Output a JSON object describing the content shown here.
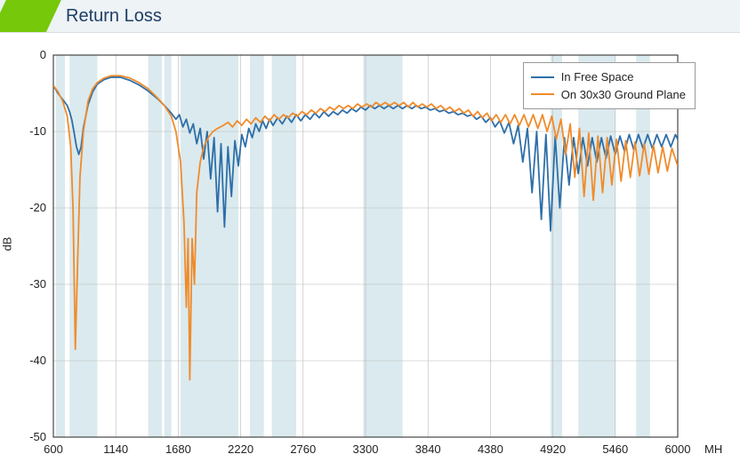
{
  "title": "Return Loss",
  "chart": {
    "type": "line",
    "background_color": "#ffffff",
    "grid_color": "#b7b7b7",
    "grid_width": 0.6,
    "band_fill": "#bed8e0",
    "band_opacity": 0.55,
    "line_width": 1.8,
    "ylabel": "dB",
    "x_unit": "MHz",
    "xlim": [
      600,
      6000
    ],
    "ylim": [
      -50,
      0
    ],
    "xticks": [
      600,
      1140,
      1680,
      2220,
      2760,
      3300,
      3840,
      4380,
      4920,
      5460,
      6000
    ],
    "yticks": [
      0,
      -10,
      -20,
      -30,
      -40,
      -50
    ],
    "tick_fontsize": 13,
    "label_fontsize": 13,
    "bands_x": [
      [
        620,
        700
      ],
      [
        740,
        980
      ],
      [
        1420,
        1540
      ],
      [
        1560,
        1620
      ],
      [
        1700,
        2200
      ],
      [
        2300,
        2420
      ],
      [
        2490,
        2700
      ],
      [
        3280,
        3620
      ],
      [
        4900,
        5000
      ],
      [
        5140,
        5460
      ],
      [
        5640,
        5760
      ]
    ],
    "series": [
      {
        "name": "In Free Space",
        "color": "#2e6fa8",
        "data": [
          [
            600,
            -4.0
          ],
          [
            640,
            -5.0
          ],
          [
            680,
            -5.8
          ],
          [
            720,
            -6.6
          ],
          [
            740,
            -7.4
          ],
          [
            760,
            -8.5
          ],
          [
            780,
            -10.2
          ],
          [
            800,
            -12.0
          ],
          [
            820,
            -13.0
          ],
          [
            840,
            -12.0
          ],
          [
            860,
            -9.5
          ],
          [
            900,
            -6.5
          ],
          [
            940,
            -4.8
          ],
          [
            980,
            -3.8
          ],
          [
            1040,
            -3.2
          ],
          [
            1100,
            -2.9
          ],
          [
            1180,
            -2.9
          ],
          [
            1260,
            -3.3
          ],
          [
            1340,
            -3.9
          ],
          [
            1420,
            -4.7
          ],
          [
            1500,
            -5.7
          ],
          [
            1560,
            -6.6
          ],
          [
            1620,
            -7.6
          ],
          [
            1660,
            -8.4
          ],
          [
            1690,
            -7.8
          ],
          [
            1720,
            -9.4
          ],
          [
            1750,
            -8.4
          ],
          [
            1780,
            -10.2
          ],
          [
            1810,
            -9.0
          ],
          [
            1840,
            -11.6
          ],
          [
            1870,
            -9.6
          ],
          [
            1900,
            -13.6
          ],
          [
            1930,
            -10.0
          ],
          [
            1960,
            -16.2
          ],
          [
            1990,
            -10.8
          ],
          [
            2020,
            -20.5
          ],
          [
            2050,
            -11.6
          ],
          [
            2080,
            -22.5
          ],
          [
            2110,
            -12.0
          ],
          [
            2140,
            -18.5
          ],
          [
            2170,
            -11.2
          ],
          [
            2200,
            -14.5
          ],
          [
            2230,
            -10.4
          ],
          [
            2260,
            -12.0
          ],
          [
            2290,
            -9.6
          ],
          [
            2320,
            -10.8
          ],
          [
            2350,
            -9.0
          ],
          [
            2380,
            -10.0
          ],
          [
            2410,
            -8.6
          ],
          [
            2440,
            -9.6
          ],
          [
            2470,
            -8.4
          ],
          [
            2500,
            -9.2
          ],
          [
            2540,
            -8.2
          ],
          [
            2580,
            -9.0
          ],
          [
            2620,
            -8.0
          ],
          [
            2660,
            -8.8
          ],
          [
            2700,
            -7.8
          ],
          [
            2740,
            -8.6
          ],
          [
            2780,
            -7.8
          ],
          [
            2820,
            -8.4
          ],
          [
            2860,
            -7.6
          ],
          [
            2900,
            -8.2
          ],
          [
            2940,
            -7.4
          ],
          [
            2980,
            -8.0
          ],
          [
            3020,
            -7.4
          ],
          [
            3060,
            -7.8
          ],
          [
            3100,
            -7.2
          ],
          [
            3140,
            -7.6
          ],
          [
            3180,
            -7.0
          ],
          [
            3220,
            -7.4
          ],
          [
            3260,
            -6.8
          ],
          [
            3300,
            -7.2
          ],
          [
            3340,
            -6.6
          ],
          [
            3380,
            -7.0
          ],
          [
            3420,
            -6.6
          ],
          [
            3460,
            -7.0
          ],
          [
            3500,
            -6.6
          ],
          [
            3540,
            -7.0
          ],
          [
            3580,
            -6.6
          ],
          [
            3620,
            -7.0
          ],
          [
            3660,
            -6.6
          ],
          [
            3700,
            -7.0
          ],
          [
            3740,
            -6.6
          ],
          [
            3780,
            -7.0
          ],
          [
            3820,
            -6.8
          ],
          [
            3860,
            -7.2
          ],
          [
            3900,
            -7.0
          ],
          [
            3940,
            -7.4
          ],
          [
            3980,
            -7.2
          ],
          [
            4020,
            -7.6
          ],
          [
            4060,
            -7.4
          ],
          [
            4100,
            -7.8
          ],
          [
            4140,
            -7.6
          ],
          [
            4180,
            -8.0
          ],
          [
            4220,
            -7.8
          ],
          [
            4260,
            -8.4
          ],
          [
            4300,
            -8.0
          ],
          [
            4340,
            -8.8
          ],
          [
            4380,
            -8.2
          ],
          [
            4420,
            -9.4
          ],
          [
            4460,
            -8.6
          ],
          [
            4500,
            -10.2
          ],
          [
            4540,
            -8.8
          ],
          [
            4580,
            -11.6
          ],
          [
            4620,
            -9.2
          ],
          [
            4660,
            -14.0
          ],
          [
            4700,
            -9.6
          ],
          [
            4740,
            -18.0
          ],
          [
            4780,
            -10.0
          ],
          [
            4820,
            -21.5
          ],
          [
            4860,
            -10.4
          ],
          [
            4900,
            -23.0
          ],
          [
            4940,
            -10.6
          ],
          [
            4980,
            -20.0
          ],
          [
            5020,
            -10.8
          ],
          [
            5060,
            -17.0
          ],
          [
            5100,
            -10.8
          ],
          [
            5140,
            -15.5
          ],
          [
            5180,
            -10.8
          ],
          [
            5220,
            -14.5
          ],
          [
            5260,
            -10.8
          ],
          [
            5300,
            -14.0
          ],
          [
            5340,
            -10.8
          ],
          [
            5380,
            -13.5
          ],
          [
            5420,
            -10.6
          ],
          [
            5460,
            -13.0
          ],
          [
            5500,
            -10.6
          ],
          [
            5540,
            -12.6
          ],
          [
            5580,
            -10.4
          ],
          [
            5620,
            -12.4
          ],
          [
            5660,
            -10.4
          ],
          [
            5700,
            -12.2
          ],
          [
            5740,
            -10.4
          ],
          [
            5780,
            -12.2
          ],
          [
            5820,
            -10.4
          ],
          [
            5860,
            -12.0
          ],
          [
            5900,
            -10.4
          ],
          [
            5940,
            -12.0
          ],
          [
            5980,
            -10.4
          ],
          [
            6000,
            -11.0
          ]
        ]
      },
      {
        "name": "On 30x30 Ground Plane",
        "color": "#f08b2b",
        "data": [
          [
            600,
            -4.0
          ],
          [
            640,
            -4.8
          ],
          [
            680,
            -6.0
          ],
          [
            720,
            -8.0
          ],
          [
            750,
            -12.0
          ],
          [
            770,
            -20.0
          ],
          [
            790,
            -38.5
          ],
          [
            810,
            -27.0
          ],
          [
            830,
            -16.0
          ],
          [
            860,
            -10.0
          ],
          [
            900,
            -6.0
          ],
          [
            940,
            -4.4
          ],
          [
            980,
            -3.6
          ],
          [
            1040,
            -3.0
          ],
          [
            1100,
            -2.7
          ],
          [
            1180,
            -2.7
          ],
          [
            1260,
            -3.0
          ],
          [
            1340,
            -3.6
          ],
          [
            1420,
            -4.4
          ],
          [
            1500,
            -5.6
          ],
          [
            1560,
            -6.6
          ],
          [
            1620,
            -8.0
          ],
          [
            1660,
            -10.0
          ],
          [
            1700,
            -14.0
          ],
          [
            1730,
            -22.0
          ],
          [
            1750,
            -33.0
          ],
          [
            1765,
            -24.0
          ],
          [
            1780,
            -42.5
          ],
          [
            1800,
            -24.0
          ],
          [
            1820,
            -30.0
          ],
          [
            1840,
            -18.0
          ],
          [
            1870,
            -14.0
          ],
          [
            1900,
            -12.0
          ],
          [
            1940,
            -10.8
          ],
          [
            1980,
            -10.0
          ],
          [
            2020,
            -9.6
          ],
          [
            2070,
            -9.2
          ],
          [
            2110,
            -8.8
          ],
          [
            2150,
            -9.4
          ],
          [
            2190,
            -8.6
          ],
          [
            2230,
            -9.2
          ],
          [
            2270,
            -8.4
          ],
          [
            2310,
            -9.0
          ],
          [
            2350,
            -8.2
          ],
          [
            2390,
            -8.8
          ],
          [
            2430,
            -8.0
          ],
          [
            2470,
            -8.6
          ],
          [
            2510,
            -7.8
          ],
          [
            2550,
            -8.4
          ],
          [
            2590,
            -7.8
          ],
          [
            2630,
            -8.2
          ],
          [
            2670,
            -7.6
          ],
          [
            2710,
            -8.0
          ],
          [
            2750,
            -7.4
          ],
          [
            2790,
            -7.8
          ],
          [
            2830,
            -7.2
          ],
          [
            2870,
            -7.6
          ],
          [
            2910,
            -7.0
          ],
          [
            2950,
            -7.4
          ],
          [
            2990,
            -6.8
          ],
          [
            3030,
            -7.2
          ],
          [
            3070,
            -6.6
          ],
          [
            3110,
            -7.0
          ],
          [
            3150,
            -6.6
          ],
          [
            3190,
            -7.0
          ],
          [
            3230,
            -6.4
          ],
          [
            3270,
            -6.8
          ],
          [
            3310,
            -6.4
          ],
          [
            3350,
            -6.8
          ],
          [
            3390,
            -6.2
          ],
          [
            3430,
            -6.6
          ],
          [
            3470,
            -6.2
          ],
          [
            3510,
            -6.6
          ],
          [
            3550,
            -6.2
          ],
          [
            3590,
            -6.6
          ],
          [
            3630,
            -6.2
          ],
          [
            3670,
            -6.8
          ],
          [
            3710,
            -6.2
          ],
          [
            3750,
            -6.8
          ],
          [
            3790,
            -6.4
          ],
          [
            3830,
            -6.8
          ],
          [
            3870,
            -6.4
          ],
          [
            3910,
            -7.0
          ],
          [
            3950,
            -6.6
          ],
          [
            3990,
            -7.2
          ],
          [
            4030,
            -6.8
          ],
          [
            4070,
            -7.4
          ],
          [
            4110,
            -7.0
          ],
          [
            4150,
            -7.6
          ],
          [
            4190,
            -7.2
          ],
          [
            4230,
            -8.0
          ],
          [
            4270,
            -7.4
          ],
          [
            4310,
            -8.2
          ],
          [
            4350,
            -7.6
          ],
          [
            4390,
            -8.6
          ],
          [
            4430,
            -7.8
          ],
          [
            4470,
            -8.8
          ],
          [
            4510,
            -7.8
          ],
          [
            4550,
            -9.0
          ],
          [
            4590,
            -7.8
          ],
          [
            4630,
            -9.2
          ],
          [
            4670,
            -7.8
          ],
          [
            4710,
            -9.4
          ],
          [
            4750,
            -7.8
          ],
          [
            4790,
            -9.6
          ],
          [
            4830,
            -7.8
          ],
          [
            4870,
            -10.0
          ],
          [
            4910,
            -8.0
          ],
          [
            4950,
            -11.0
          ],
          [
            4990,
            -8.4
          ],
          [
            5030,
            -13.0
          ],
          [
            5070,
            -9.0
          ],
          [
            5110,
            -16.0
          ],
          [
            5150,
            -9.6
          ],
          [
            5190,
            -18.5
          ],
          [
            5230,
            -10.2
          ],
          [
            5270,
            -19.0
          ],
          [
            5310,
            -10.6
          ],
          [
            5350,
            -18.0
          ],
          [
            5390,
            -10.8
          ],
          [
            5430,
            -17.0
          ],
          [
            5470,
            -11.0
          ],
          [
            5510,
            -16.5
          ],
          [
            5550,
            -11.2
          ],
          [
            5590,
            -16.0
          ],
          [
            5630,
            -11.4
          ],
          [
            5670,
            -15.8
          ],
          [
            5710,
            -11.6
          ],
          [
            5750,
            -15.6
          ],
          [
            5790,
            -11.8
          ],
          [
            5830,
            -15.4
          ],
          [
            5870,
            -12.0
          ],
          [
            5910,
            -15.2
          ],
          [
            5950,
            -12.2
          ],
          [
            6000,
            -14.5
          ]
        ]
      }
    ],
    "legend": {
      "position": "upper-right",
      "border_color": "#999999",
      "fontsize": 13
    }
  }
}
